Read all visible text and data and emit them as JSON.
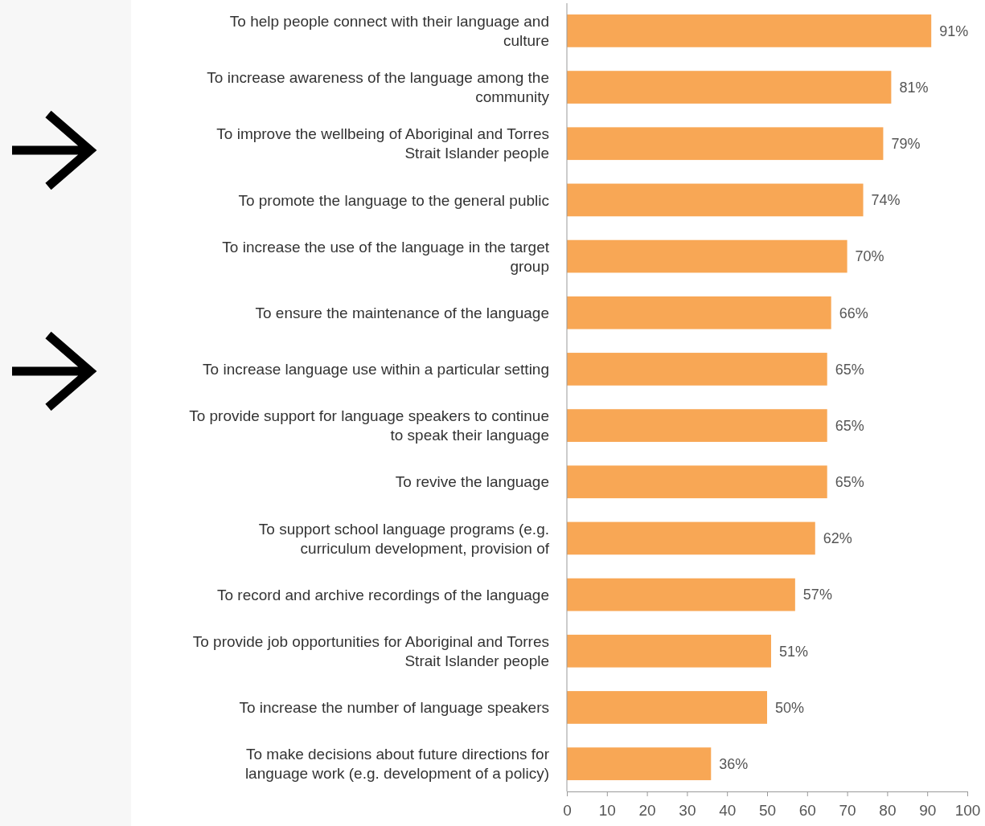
{
  "chart_data": {
    "type": "bar",
    "orientation": "horizontal",
    "categories": [
      "To help people connect with their language and culture",
      "To increase awareness of the language among the community",
      "To improve the wellbeing of Aboriginal and Torres Strait Islander people",
      "To promote the language to the general public",
      "To increase the use of the language in the target group",
      "To ensure the maintenance of the language",
      "To increase language use within a particular setting",
      "To provide support for language speakers to continue to speak their language",
      "To revive the language",
      "To support school language programs (e.g. curriculum development, provision of",
      "To record and archive recordings of the language",
      "To provide job opportunities for Aboriginal and Torres Strait Islander people",
      "To increase the number of language speakers",
      "To make decisions about future directions for language work (e.g. development of a policy)"
    ],
    "values": [
      91,
      81,
      79,
      74,
      70,
      66,
      65,
      65,
      65,
      62,
      57,
      51,
      50,
      36
    ],
    "value_labels": [
      "91%",
      "81%",
      "79%",
      "74%",
      "70%",
      "66%",
      "65%",
      "65%",
      "65%",
      "62%",
      "57%",
      "51%",
      "50%",
      "36%"
    ],
    "color": "#f8a755",
    "xlim": [
      0,
      100
    ],
    "xticks": [
      0,
      10,
      20,
      30,
      40,
      50,
      60,
      70,
      80,
      90,
      100
    ],
    "grid": false
  }
}
